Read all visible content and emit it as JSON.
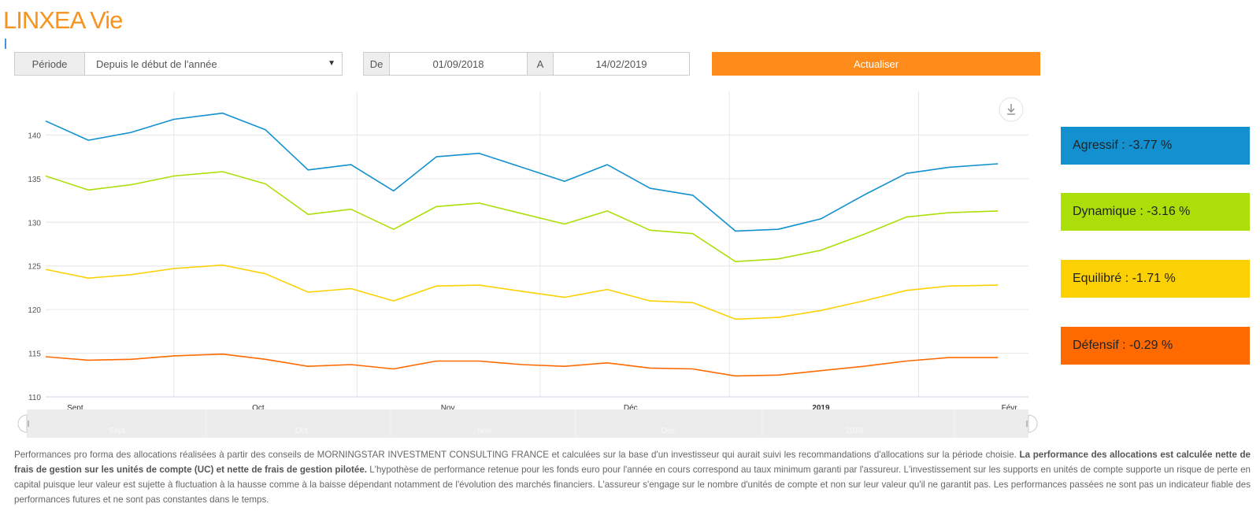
{
  "header": {
    "title": "LINXEA Vie"
  },
  "filters": {
    "period_label": "Période",
    "period_value": "Depuis le début de l'année",
    "from_label": "De",
    "from_value": "01/09/2018",
    "to_label": "A",
    "to_value": "14/02/2019",
    "update_button": "Actualiser"
  },
  "legend": [
    {
      "label": "Agressif : -3.77 %",
      "color": "#1290cf"
    },
    {
      "label": "Dynamique : -3.16 %",
      "color": "#acdf0a"
    },
    {
      "label": "Equilibré : -1.71 %",
      "color": "#fcd104"
    },
    {
      "label": "Défensif : -0.29 %",
      "color": "#ff6a00"
    }
  ],
  "navigator": {
    "labels": [
      "Sept.",
      "Oct.",
      "Nov.",
      "Déc.",
      "2019"
    ]
  },
  "disclaimer": {
    "part1": "Performances pro forma des allocations réalisées à partir des conseils de MORNINGSTAR INVESTMENT CONSULTING FRANCE et calculées sur la base d'un investisseur qui aurait suivi les recommandations d'allocations sur la période choisie. ",
    "bold": "La performance des allocations est calculée nette de frais de gestion sur les unités de compte (UC) et nette de frais de gestion pilotée.",
    "part2": " L'hypothèse de performance retenue pour les fonds euro pour l'année en cours correspond au taux minimum garanti par l'assureur. L'investissement sur les supports en unités de compte supporte un risque de perte en capital puisque leur valeur est sujette à fluctuation à la hausse comme à la baisse dépendant notamment de l'évolution des marchés financiers. L'assureur s'engage sur le nombre d'unités de compte et non sur leur valeur qu'il ne garantit pas. Les performances passées ne sont pas un indicateur fiable des performances futures et ne sont pas constantes dans le temps."
  },
  "chart_data": {
    "type": "line",
    "title": "",
    "xlabel": "",
    "ylabel": "",
    "ylim": [
      110,
      145
    ],
    "yticks": [
      110,
      115,
      120,
      125,
      130,
      135,
      140
    ],
    "xlim": [
      "2018-08-27",
      "2019-02-04"
    ],
    "xticks": [
      {
        "date": "2018-09-01",
        "label": "Sept.",
        "bold": false
      },
      {
        "date": "2018-10-01",
        "label": "Oct.",
        "bold": false
      },
      {
        "date": "2018-11-01",
        "label": "Nov.",
        "bold": false
      },
      {
        "date": "2018-12-01",
        "label": "Déc.",
        "bold": false
      },
      {
        "date": "2019-01-01",
        "label": "2019",
        "bold": true
      },
      {
        "date": "2019-02-01",
        "label": "Févr.",
        "bold": false
      }
    ],
    "gridlines_x": [
      "2018-09-17",
      "2018-10-17",
      "2018-11-16",
      "2018-12-17",
      "2019-01-17"
    ],
    "grid": true,
    "x": [
      "2018-08-27",
      "2018-09-03",
      "2018-09-10",
      "2018-09-17",
      "2018-09-25",
      "2018-10-02",
      "2018-10-09",
      "2018-10-16",
      "2018-10-23",
      "2018-10-30",
      "2018-11-06",
      "2018-11-13",
      "2018-11-20",
      "2018-11-27",
      "2018-12-04",
      "2018-12-11",
      "2018-12-18",
      "2018-12-25",
      "2019-01-01",
      "2019-01-08",
      "2019-01-15",
      "2019-01-22",
      "2019-01-30"
    ],
    "series": [
      {
        "color": "#1290cf",
        "values": [
          141.6,
          139.4,
          140.3,
          141.8,
          142.5,
          140.6,
          136.0,
          136.6,
          133.6,
          137.5,
          137.9,
          136.3,
          134.7,
          136.6,
          133.9,
          133.1,
          129.0,
          129.2,
          130.4,
          133.1,
          135.6,
          136.3,
          136.7
        ]
      },
      {
        "color": "#acdf0a",
        "values": [
          135.3,
          133.7,
          134.3,
          135.3,
          135.8,
          134.4,
          130.9,
          131.5,
          129.2,
          131.8,
          132.2,
          131.0,
          129.8,
          131.3,
          129.1,
          128.7,
          125.5,
          125.8,
          126.8,
          128.6,
          130.6,
          131.1,
          131.3
        ]
      },
      {
        "color": "#fcd104",
        "values": [
          124.6,
          123.6,
          124.0,
          124.7,
          125.1,
          124.1,
          122.0,
          122.4,
          121.0,
          122.7,
          122.8,
          122.1,
          121.4,
          122.3,
          121.0,
          120.8,
          118.9,
          119.1,
          119.9,
          121.0,
          122.2,
          122.7,
          122.8
        ]
      },
      {
        "color": "#ff6a00",
        "values": [
          114.6,
          114.2,
          114.3,
          114.7,
          114.9,
          114.3,
          113.5,
          113.7,
          113.2,
          114.1,
          114.1,
          113.7,
          113.5,
          113.9,
          113.3,
          113.2,
          112.4,
          112.5,
          113.0,
          113.5,
          114.1,
          114.5,
          114.5
        ]
      }
    ]
  }
}
